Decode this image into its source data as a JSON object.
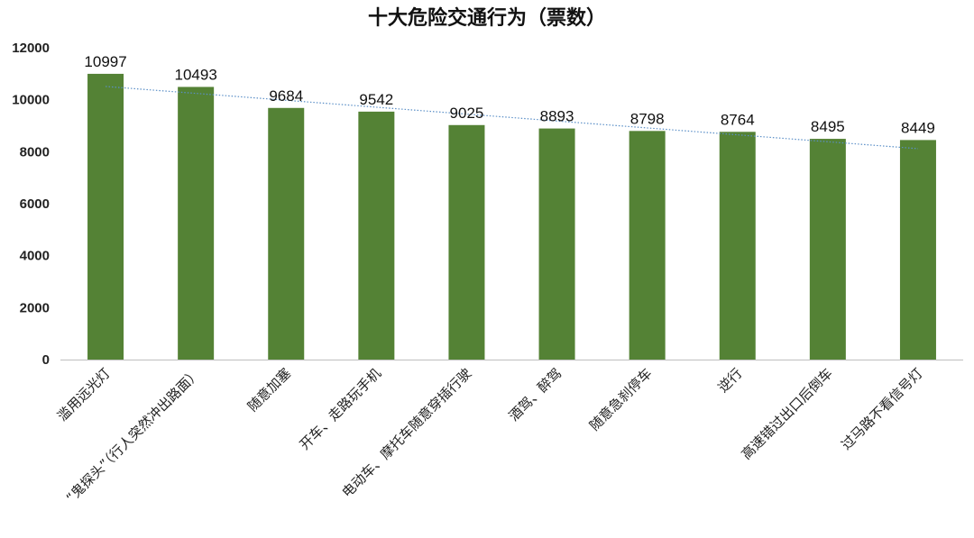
{
  "chart_data": {
    "type": "bar",
    "title": "十大危险交通行为（票数）",
    "categories": [
      "滥用远光灯",
      "“鬼探头”（行人突然冲出路面）",
      "随意加塞",
      "开车、走路玩手机",
      "电动车、摩托车随意穿插行驶",
      "酒驾、醉驾",
      "随意急刹停车",
      "逆行",
      "高速错过出口后倒车",
      "过马路不看信号灯"
    ],
    "values": [
      10997,
      10493,
      9684,
      9542,
      9025,
      8893,
      8798,
      8764,
      8495,
      8449
    ],
    "ylim": [
      0,
      12000
    ],
    "yticks": [
      0,
      2000,
      4000,
      6000,
      8000,
      10000,
      12000
    ],
    "xlabel": "",
    "ylabel": "",
    "grid": false,
    "legend": "none",
    "trendline": "linear",
    "colors": {
      "bar": "#548235",
      "trendline": "#5b8fc7",
      "axis": "#bfbfbf"
    }
  }
}
